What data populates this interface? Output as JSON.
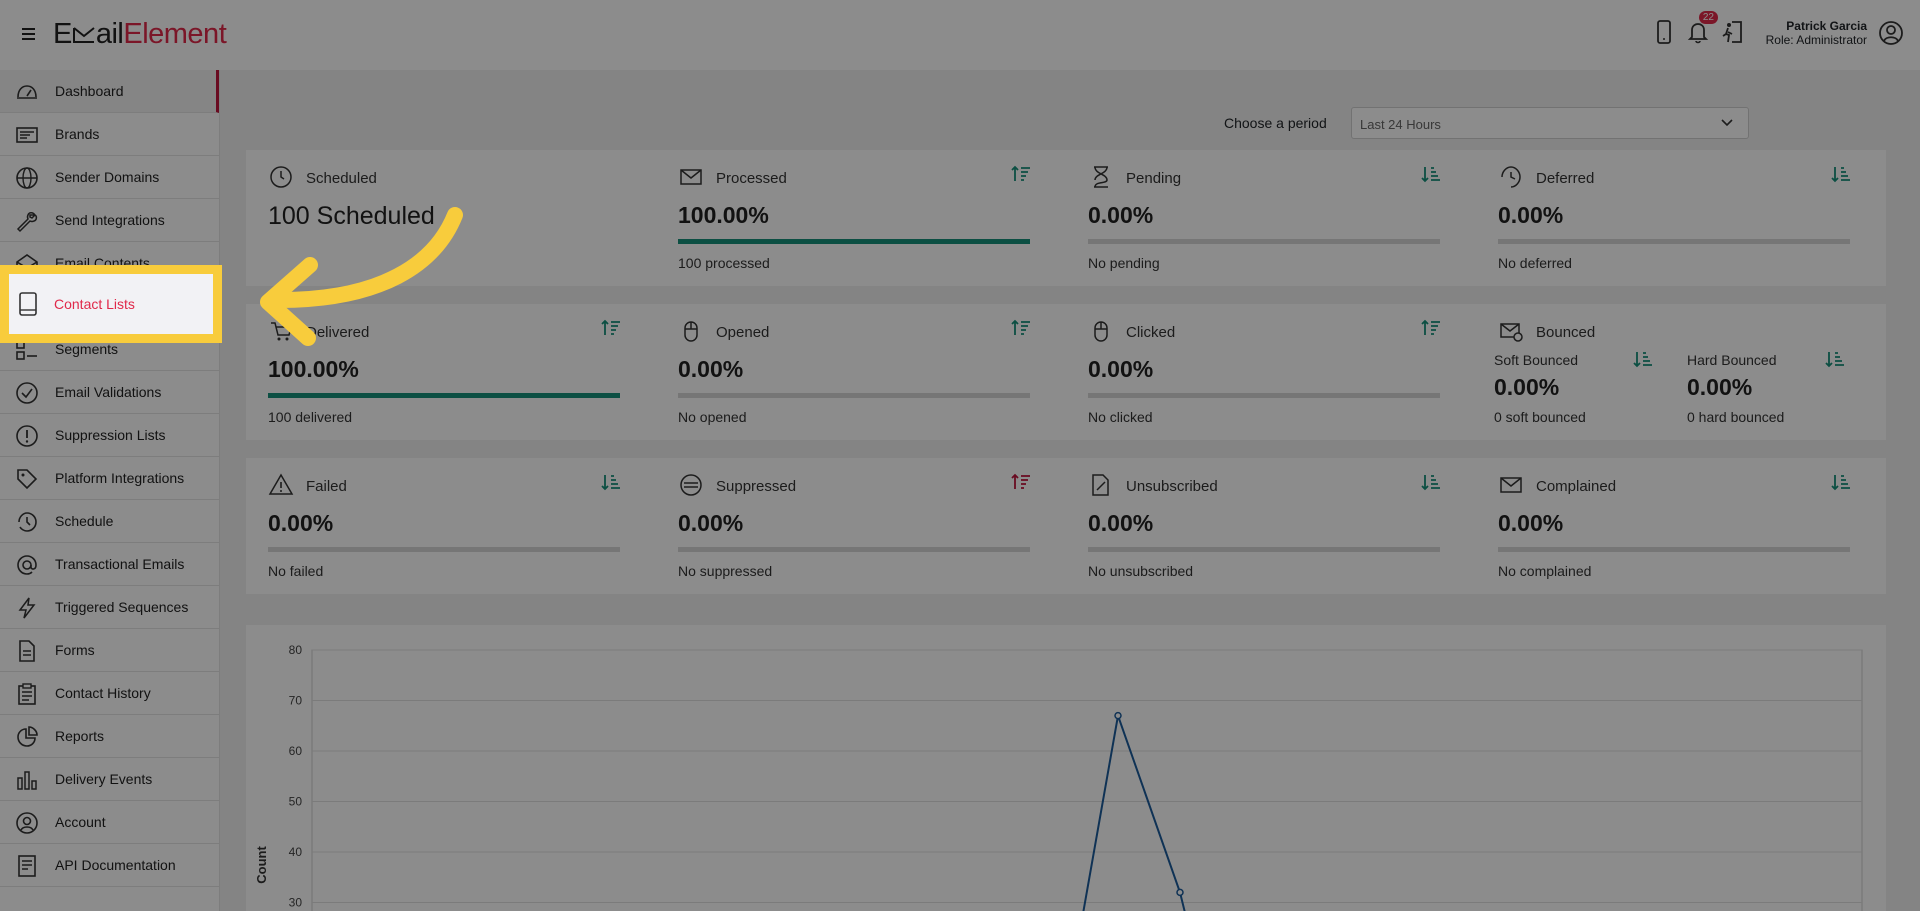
{
  "header": {
    "logo_prefix": "E",
    "logo_mid": "ail",
    "logo_suffix": "Element",
    "notification_count": "22",
    "user_name": "Patrick Garcia",
    "user_role": "Role: Administrator"
  },
  "sidebar": {
    "items": [
      {
        "label": "Dashboard",
        "icon": "gauge-icon"
      },
      {
        "label": "Brands",
        "icon": "card-icon"
      },
      {
        "label": "Sender Domains",
        "icon": "globe-icon"
      },
      {
        "label": "Send Integrations",
        "icon": "wrench-icon"
      },
      {
        "label": "Email Contents",
        "icon": "envelope-open-icon"
      },
      {
        "label": "Contact Lists",
        "icon": "book-icon"
      },
      {
        "label": "Segments",
        "icon": "segments-icon"
      },
      {
        "label": "Email Validations",
        "icon": "check-circle-icon"
      },
      {
        "label": "Suppression Lists",
        "icon": "exclamation-circle-icon"
      },
      {
        "label": "Platform Integrations",
        "icon": "tag-icon"
      },
      {
        "label": "Schedule",
        "icon": "history-icon"
      },
      {
        "label": "Transactional Emails",
        "icon": "at-icon"
      },
      {
        "label": "Triggered Sequences",
        "icon": "lightning-icon"
      },
      {
        "label": "Forms",
        "icon": "document-icon"
      },
      {
        "label": "Contact History",
        "icon": "clipboard-icon"
      },
      {
        "label": "Reports",
        "icon": "pie-icon"
      },
      {
        "label": "Delivery Events",
        "icon": "bar-chart-icon"
      },
      {
        "label": "Account",
        "icon": "user-circle-icon"
      },
      {
        "label": "API Documentation",
        "icon": "api-doc-icon"
      }
    ]
  },
  "period": {
    "label": "Choose a period",
    "value": "Last 24 Hours"
  },
  "stats": {
    "scheduled": {
      "title": "Scheduled",
      "value": "100 Scheduled"
    },
    "processed": {
      "title": "Processed",
      "value": "100.00%",
      "sub": "100 processed",
      "fill": 1.0
    },
    "pending": {
      "title": "Pending",
      "value": "0.00%",
      "sub": "No pending",
      "fill": 0
    },
    "deferred": {
      "title": "Deferred",
      "value": "0.00%",
      "sub": "No deferred",
      "fill": 0
    },
    "delivered": {
      "title": "Delivered",
      "value": "100.00%",
      "sub": "100 delivered",
      "fill": 1.0
    },
    "opened": {
      "title": "Opened",
      "value": "0.00%",
      "sub": "No opened",
      "fill": 0
    },
    "clicked": {
      "title": "Clicked",
      "value": "0.00%",
      "sub": "No clicked",
      "fill": 0
    },
    "bounced": {
      "title": "Bounced",
      "soft_title": "Soft Bounced",
      "soft_value": "0.00%",
      "soft_sub": "0 soft bounced",
      "hard_title": "Hard Bounced",
      "hard_value": "0.00%",
      "hard_sub": "0 hard bounced"
    },
    "failed": {
      "title": "Failed",
      "value": "0.00%",
      "sub": "No failed",
      "fill": 0
    },
    "suppressed": {
      "title": "Suppressed",
      "value": "0.00%",
      "sub": "No suppressed",
      "fill": 0
    },
    "unsubscribed": {
      "title": "Unsubscribed",
      "value": "0.00%",
      "sub": "No unsubscribed",
      "fill": 0
    },
    "complained": {
      "title": "Complained",
      "value": "0.00%",
      "sub": "No complained",
      "fill": 0
    }
  },
  "chart_data": {
    "type": "line",
    "ylabel": "Count",
    "ylim": [
      30,
      80
    ],
    "yticks": [
      "80",
      "70",
      "60",
      "50",
      "40",
      "30"
    ],
    "points_visible": [
      {
        "x_frac": 0.52,
        "y": 67
      },
      {
        "x_frac": 0.56,
        "y": 32
      }
    ],
    "line_color": "#1d5c9c"
  },
  "colors": {
    "accent": "#e0294a",
    "progress": "#17907a",
    "highlight": "#f8cc3c"
  }
}
